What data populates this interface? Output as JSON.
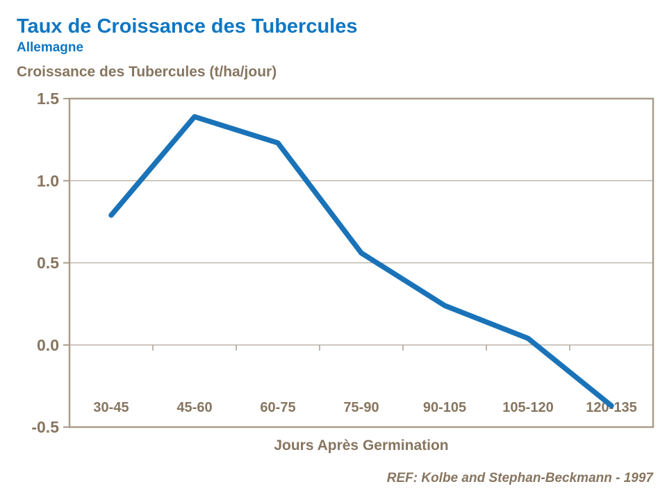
{
  "page": {
    "title": "Taux de Croissance des Tubercules",
    "subtitle": "Allemagne",
    "ref_note": "REF: Kolbe and Stephan-Beckmann - 1997"
  },
  "colors": {
    "title_blue": "#0F76C2",
    "line_blue": "#1A73B8",
    "text_brown": "#87755F",
    "axis_frame": "#A89C8C",
    "gridline": "#B3A899",
    "background": "#FFFFFF"
  },
  "chart_data": {
    "type": "line",
    "title": "Taux de Croissance des Tubercules",
    "subtitle": "Allemagne",
    "xlabel": "Jours Après Germination",
    "ylabel": "Croissance des Tubercules (t/ha/jour)",
    "categories": [
      "30-45",
      "45-60",
      "60-75",
      "75-90",
      "90-105",
      "105-120",
      "120-135"
    ],
    "series": [
      {
        "name": "Croissance des Tubercules",
        "values": [
          0.79,
          1.39,
          1.23,
          0.56,
          0.24,
          0.04,
          -0.37
        ]
      }
    ],
    "ylim": [
      -0.5,
      1.5
    ],
    "ytick_interval": 0.5,
    "ytick_labels": [
      "1.5",
      "1.0",
      "0.5",
      "0.0",
      "-0.5"
    ],
    "grid": true,
    "legend_position": "none",
    "annotation": "REF: Kolbe and Stephan-Beckmann - 1997"
  }
}
